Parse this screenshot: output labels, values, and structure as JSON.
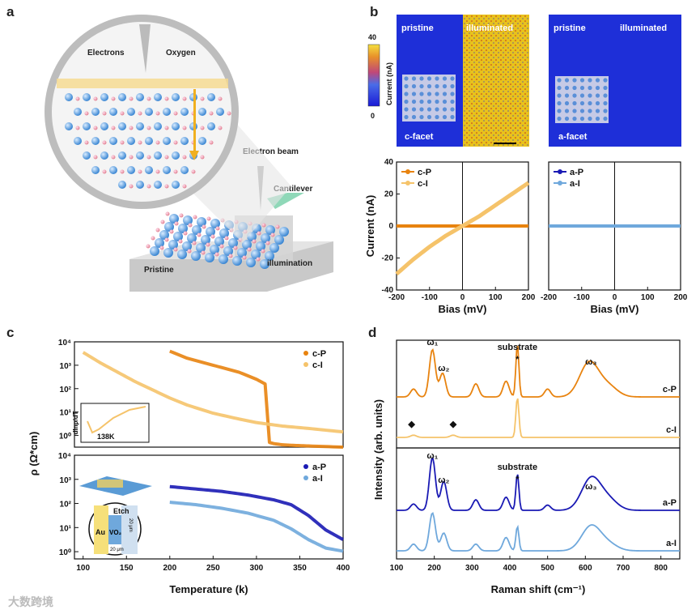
{
  "panel_labels": {
    "a": "a",
    "b": "b",
    "c": "c",
    "d": "d"
  },
  "panel_a": {
    "electrons": "Electrons",
    "oxygen": "Oxygen",
    "electron_beam": "Electron beam",
    "cantilever": "Cantilever",
    "pristine": "Pristine",
    "illumination": "illumination"
  },
  "panel_b_maps": {
    "colorbar_max": "40",
    "colorbar_min": "0",
    "colorbar_label": "Current (nA)",
    "left_map": {
      "pristine": "pristine",
      "illuminated": "illuminated",
      "facet": "c-facet"
    },
    "right_map": {
      "pristine": "pristine",
      "illuminated": "illuminated",
      "facet": "a-facet"
    }
  },
  "watermark": "大数跨境",
  "colors": {
    "cP": "#e8830f",
    "cI": "#f5c36a",
    "aP": "#1a1ab4",
    "aI": "#6fa8dc",
    "map_blue": "#1e2fd8",
    "map_yellow": "#e8c21c"
  },
  "chart_data": [
    {
      "id": "b-iv-c",
      "type": "line",
      "xlabel": "Bias (mV)",
      "ylabel": "Current (nA)",
      "xlim": [
        -200,
        200
      ],
      "ylim": [
        -40,
        40
      ],
      "xticks": [
        "-200",
        "-100",
        "0",
        "100",
        "200"
      ],
      "yticks": [
        "40",
        "20",
        "0",
        "-20",
        "-40"
      ],
      "series": [
        {
          "name": "c-P",
          "x": [
            -200,
            200
          ],
          "y": [
            0,
            0
          ]
        },
        {
          "name": "c-I",
          "x": [
            -200,
            -150,
            -100,
            -50,
            0,
            50,
            100,
            150,
            200
          ],
          "y": [
            -30,
            -21,
            -13,
            -6,
            0,
            6,
            13,
            20,
            27
          ]
        }
      ]
    },
    {
      "id": "b-iv-a",
      "type": "line",
      "xlabel": "Bias (mV)",
      "ylabel": "",
      "xlim": [
        -200,
        200
      ],
      "ylim": [
        -40,
        40
      ],
      "xticks": [
        "-200",
        "-100",
        "0",
        "100",
        "200"
      ],
      "series": [
        {
          "name": "a-P",
          "x": [
            -200,
            200
          ],
          "y": [
            0,
            0
          ]
        },
        {
          "name": "a-I",
          "x": [
            -200,
            200
          ],
          "y": [
            0,
            0
          ]
        }
      ]
    },
    {
      "id": "c-rho",
      "type": "line",
      "scale_y": "log",
      "xlabel": "Temperature (k)",
      "ylabel": "ρ (Ω*cm)",
      "xlim": [
        90,
        400
      ],
      "xticks": [
        "100",
        "150",
        "200",
        "250",
        "300",
        "350",
        "400"
      ],
      "top": {
        "ylim_exp": [
          -0.5,
          4
        ],
        "yticks": [
          "10⁴",
          "10³",
          "10²",
          "10¹",
          "10⁰"
        ],
        "series": [
          {
            "name": "c-P",
            "x": [
              200,
              220,
              250,
              280,
              300,
              310,
              315,
              320,
              330,
              340,
              360,
              400
            ],
            "y": [
              3.6,
              3.3,
              3.0,
              2.7,
              2.4,
              2.2,
              -0.3,
              -0.35,
              -0.4,
              -0.42,
              -0.45,
              -0.5
            ]
          },
          {
            "name": "c-I",
            "x": [
              100,
              120,
              140,
              160,
              180,
              200,
              220,
              250,
              280,
              300,
              330,
              360,
              400
            ],
            "y": [
              3.55,
              3.1,
              2.7,
              2.3,
              1.95,
              1.6,
              1.3,
              0.95,
              0.7,
              0.55,
              0.4,
              0.3,
              0.15
            ]
          }
        ],
        "inset": {
          "ylabel": "dlnρ/dT",
          "label": "138K"
        }
      },
      "bottom": {
        "ylim_exp": [
          -0.3,
          4
        ],
        "yticks": [
          "10⁴",
          "10³",
          "10²",
          "10¹",
          "10⁰"
        ],
        "series": [
          {
            "name": "a-P",
            "x": [
              200,
              230,
              260,
              290,
              320,
              340,
              360,
              380,
              400
            ],
            "y": [
              2.7,
              2.6,
              2.5,
              2.35,
              2.15,
              1.95,
              1.5,
              0.9,
              0.5
            ]
          },
          {
            "name": "a-I",
            "x": [
              200,
              230,
              260,
              290,
              320,
              340,
              360,
              380,
              400
            ],
            "y": [
              2.05,
              1.95,
              1.8,
              1.6,
              1.3,
              0.95,
              0.5,
              0.15,
              0.02
            ]
          }
        ],
        "inset": {
          "au": "Au",
          "etch": "Etch",
          "vo2": "VO₂",
          "w": "20 μm",
          "h": "20 μm"
        }
      }
    },
    {
      "id": "d-raman",
      "type": "line",
      "xlabel": "Raman shift (cm⁻¹)",
      "ylabel": "Intensity (arb. units)",
      "xlim": [
        100,
        850
      ],
      "xticks": [
        "100",
        "200",
        "300",
        "400",
        "500",
        "600",
        "700",
        "800"
      ],
      "annotations": {
        "substrate": "substrate",
        "star": "*",
        "w1": "ω₁",
        "w2": "ω₂",
        "w3": "ω₃",
        "diamond": "◆"
      },
      "series": [
        {
          "name": "c-P",
          "peaks": [
            [
              145,
              0.15
            ],
            [
              195,
              0.9
            ],
            [
              222,
              0.45
            ],
            [
              310,
              0.25
            ],
            [
              390,
              0.3
            ],
            [
              420,
              1.0
            ],
            [
              500,
              0.15
            ],
            [
              610,
              0.65
            ],
            [
              660,
              0.2
            ]
          ]
        },
        {
          "name": "c-I",
          "peaks": [
            [
              145,
              0.05
            ],
            [
              250,
              0.05
            ],
            [
              420,
              0.9
            ]
          ]
        },
        {
          "name": "a-P",
          "peaks": [
            [
              145,
              0.12
            ],
            [
              195,
              1.0
            ],
            [
              225,
              0.55
            ],
            [
              310,
              0.2
            ],
            [
              390,
              0.25
            ],
            [
              420,
              0.7
            ],
            [
              500,
              0.1
            ],
            [
              615,
              0.6
            ],
            [
              660,
              0.2
            ]
          ]
        },
        {
          "name": "a-I",
          "peaks": [
            [
              145,
              0.15
            ],
            [
              195,
              0.85
            ],
            [
              225,
              0.4
            ],
            [
              310,
              0.15
            ],
            [
              390,
              0.3
            ],
            [
              420,
              0.55
            ],
            [
              615,
              0.55
            ],
            [
              660,
              0.15
            ]
          ]
        }
      ]
    }
  ]
}
